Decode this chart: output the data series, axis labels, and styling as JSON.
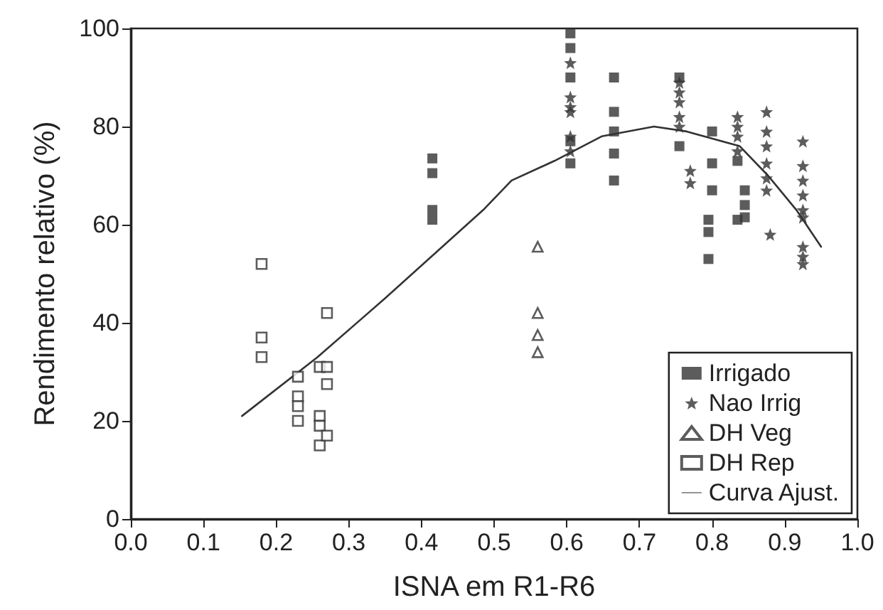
{
  "chart_data": {
    "type": "scatter",
    "xlabel": "ISNA em R1-R6",
    "ylabel": "Rendimento relativo (%)",
    "xlim": [
      0,
      1
    ],
    "xticks": [
      {
        "value": 0,
        "label": "0.0"
      },
      {
        "value": 0.1,
        "label": "0.1"
      },
      {
        "value": 0.2,
        "label": "0.2"
      },
      {
        "value": 0.3,
        "label": "0.3"
      },
      {
        "value": 0.4,
        "label": "0.4"
      },
      {
        "value": 0.5,
        "label": "0.5"
      },
      {
        "value": 0.6,
        "label": "0.6"
      },
      {
        "value": 0.7,
        "label": "0.7"
      },
      {
        "value": 0.8,
        "label": "0.8"
      },
      {
        "value": 0.9,
        "label": "0.9"
      },
      {
        "value": 1,
        "label": "1.0"
      }
    ],
    "ylim": [
      0,
      100
    ],
    "yticks": [
      0,
      20,
      40,
      60,
      80,
      100
    ],
    "grid": false,
    "legend": "bottom right",
    "series": [
      {
        "name": "Irrigado",
        "color": "#333333",
        "marker": "square",
        "x": [
          0.415,
          0.415,
          0.415,
          0.415,
          0.605,
          0.605,
          0.605,
          0.605,
          0.605,
          0.665,
          0.665,
          0.665,
          0.665,
          0.665,
          0.755,
          0.755,
          0.8,
          0.8,
          0.8,
          0.795,
          0.795,
          0.795,
          0.835,
          0.845,
          0.845,
          0.845,
          0.835
        ],
        "values": [
          73.5,
          70.5,
          63,
          61,
          99,
          96,
          90,
          77,
          72.5,
          90,
          83,
          79,
          74.5,
          69,
          90,
          76,
          79,
          72.5,
          67,
          61,
          58.5,
          53,
          73,
          67,
          64,
          61.5,
          61
        ]
      },
      {
        "name": "Nao Irrig",
        "color": "#333333",
        "marker": "star",
        "x": [
          0.605,
          0.605,
          0.605,
          0.605,
          0.605,
          0.605,
          0.755,
          0.755,
          0.755,
          0.755,
          0.755,
          0.77,
          0.77,
          0.835,
          0.835,
          0.835,
          0.835,
          0.875,
          0.875,
          0.875,
          0.875,
          0.875,
          0.875,
          0.88,
          0.925,
          0.925,
          0.925,
          0.925,
          0.925,
          0.925,
          0.925,
          0.925,
          0.925
        ],
        "values": [
          93,
          86,
          84,
          83,
          78,
          75,
          89,
          87,
          85,
          82,
          80,
          71,
          68.5,
          82,
          80,
          78,
          75,
          83,
          79,
          76,
          72.5,
          69.5,
          67,
          58,
          77,
          72,
          69,
          66,
          63,
          61.5,
          55.5,
          53.5,
          52
        ]
      },
      {
        "name": "DH Veg",
        "color": "#333333",
        "marker": "triangle",
        "x": [
          0.56,
          0.56,
          0.56,
          0.56
        ],
        "values": [
          55.5,
          42,
          37.5,
          34
        ]
      },
      {
        "name": "DH Rep",
        "color": "#333333",
        "marker": "square",
        "x": [
          0.18,
          0.18,
          0.18,
          0.23,
          0.23,
          0.23,
          0.23,
          0.26,
          0.26,
          0.26,
          0.26,
          0.27,
          0.27,
          0.27,
          0.27
        ],
        "values": [
          52,
          37,
          33,
          29,
          25,
          23,
          20,
          31,
          21,
          19,
          15,
          42,
          31,
          27.5,
          17
        ]
      },
      {
        "name": "Curva Ajust.",
        "type": "line",
        "color": "#333333",
        "marker": "none",
        "line_style": "solid",
        "x": [
          0.153,
          0.257,
          0.35,
          0.485,
          0.524,
          0.583,
          0.648,
          0.72,
          0.765,
          0.838,
          0.877,
          0.916,
          0.95
        ],
        "values": [
          21,
          33,
          45,
          63,
          69,
          73,
          78,
          80,
          79,
          76,
          70,
          63,
          55.5
        ]
      }
    ]
  }
}
